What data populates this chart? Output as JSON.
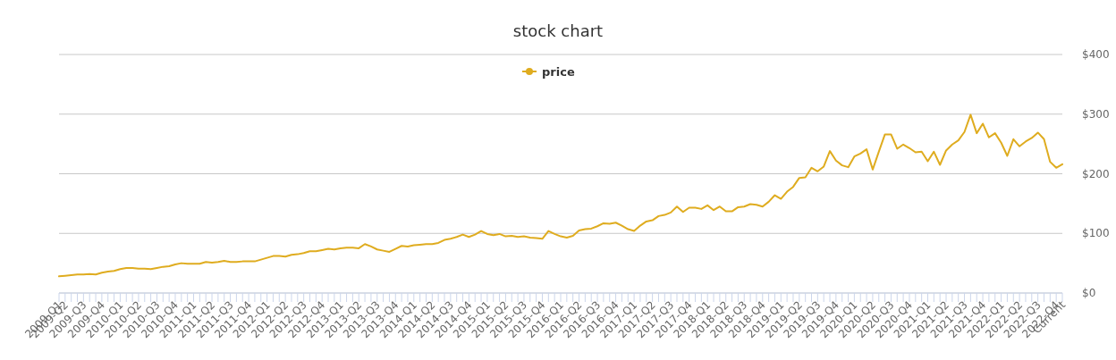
{
  "chart_data": {
    "type": "line",
    "title": "stock chart",
    "categories": [
      "2009-Q1",
      "2009-Q2",
      null,
      null,
      "2009-Q3",
      null,
      null,
      "2009-Q4",
      null,
      null,
      "2010-Q1",
      null,
      null,
      "2010-Q2",
      null,
      null,
      "2010-Q3",
      null,
      null,
      "2010-Q4",
      null,
      null,
      "2011-Q1",
      null,
      null,
      "2011-Q2",
      null,
      null,
      "2011-Q3",
      null,
      null,
      "2011-Q4",
      null,
      null,
      "2012-Q1",
      null,
      null,
      "2012-Q2",
      null,
      null,
      "2012-Q3",
      null,
      null,
      "2012-Q4",
      null,
      null,
      "2013-Q1",
      null,
      null,
      "2013-Q2",
      null,
      null,
      "2013-Q3",
      null,
      null,
      "2013-Q4",
      null,
      null,
      "2014-Q1",
      null,
      null,
      "2014-Q2",
      null,
      null,
      "2014-Q3",
      null,
      null,
      "2014-Q4",
      null,
      null,
      "2015-Q1",
      null,
      null,
      "2015-Q2",
      null,
      null,
      "2015-Q3",
      null,
      null,
      "2015-Q4",
      null,
      null,
      "2016-Q1",
      null,
      null,
      "2016-Q2",
      null,
      null,
      "2016-Q3",
      null,
      null,
      "2016-Q4",
      null,
      null,
      "2017-Q1",
      null,
      null,
      "2017-Q2",
      null,
      null,
      "2017-Q3",
      null,
      null,
      "2017-Q4",
      null,
      null,
      "2018-Q1",
      null,
      null,
      "2018-Q2",
      null,
      null,
      "2018-Q3",
      null,
      null,
      "2018-Q4",
      null,
      null,
      "2019-Q1",
      null,
      null,
      "2019-Q2",
      null,
      null,
      "2019-Q3",
      null,
      null,
      "2019-Q4",
      null,
      null,
      "2020-Q1",
      null,
      null,
      "2020-Q2",
      null,
      null,
      "2020-Q3",
      null,
      null,
      "2020-Q4",
      null,
      null,
      "2021-Q1",
      null,
      null,
      "2021-Q2",
      null,
      null,
      "2021-Q3",
      null,
      null,
      "2021-Q4",
      null,
      null,
      "2022-Q1",
      null,
      null,
      "2022-Q2",
      null,
      null,
      "2022-Q3",
      null,
      null,
      "2022-Q4",
      "Current"
    ],
    "series": [
      {
        "name": "price",
        "color": "#dfac1f",
        "values": [
          28,
          29,
          30,
          31,
          31,
          32,
          31,
          34,
          36,
          37,
          40,
          42,
          42,
          41,
          41,
          40,
          42,
          44,
          45,
          48,
          50,
          49,
          49,
          49,
          52,
          51,
          52,
          54,
          52,
          52,
          53,
          53,
          53,
          56,
          59,
          62,
          62,
          61,
          64,
          65,
          67,
          70,
          70,
          72,
          74,
          73,
          75,
          76,
          76,
          75,
          82,
          78,
          73,
          71,
          69,
          74,
          79,
          78,
          80,
          81,
          82,
          82,
          84,
          89,
          91,
          94,
          98,
          94,
          98,
          104,
          99,
          97,
          99,
          95,
          96,
          94,
          95,
          93,
          92,
          91,
          104,
          99,
          95,
          93,
          96,
          105,
          107,
          108,
          112,
          117,
          116,
          118,
          113,
          107,
          104,
          113,
          120,
          122,
          129,
          131,
          135,
          145,
          136,
          143,
          143,
          141,
          147,
          139,
          145,
          137,
          137,
          144,
          145,
          149,
          148,
          145,
          153,
          164,
          158,
          170,
          178,
          193,
          194,
          210,
          204,
          212,
          238,
          222,
          214,
          211,
          229,
          234,
          241,
          207,
          237,
          266,
          266,
          242,
          249,
          243,
          236,
          237,
          221,
          237,
          215,
          239,
          249,
          256,
          270,
          299,
          268,
          284,
          261,
          268,
          252,
          230,
          258,
          246,
          254,
          260,
          269,
          258,
          220,
          210,
          216
        ]
      }
    ],
    "ylim": [
      0,
      400
    ],
    "yticks": [
      {
        "value": 0,
        "label": "$0"
      },
      {
        "value": 100,
        "label": "$100"
      },
      {
        "value": 200,
        "label": "$200"
      },
      {
        "value": 300,
        "label": "$300"
      },
      {
        "value": 400,
        "label": "$400"
      }
    ],
    "grid": "y",
    "legend": "top",
    "marker": "none",
    "line_style": "solid"
  }
}
